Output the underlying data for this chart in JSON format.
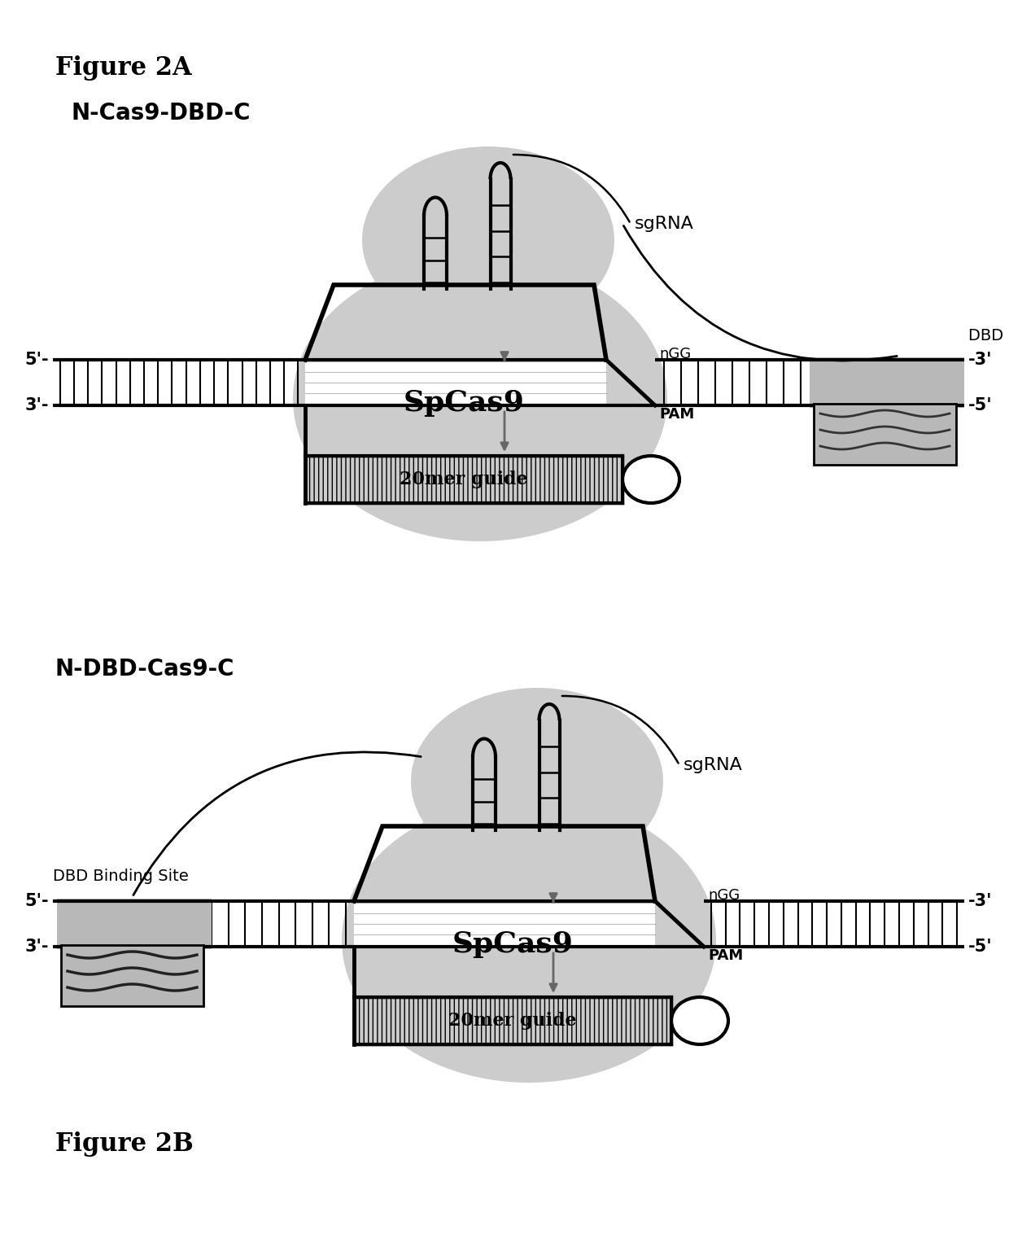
{
  "bg_color": "#ffffff",
  "fig_label": "Figure 2A",
  "panel1_label": "N-Cas9-DBD-C",
  "panel2_label": "N-DBD-Cas9-C",
  "fig2b_label": "Figure 2B",
  "cas9_label": "SpCas9",
  "sgrna_label": "sgRNA",
  "guide_label": "20mer guide",
  "pam_label": "PAM",
  "ngg_label": "nGG",
  "dbd_label": "DBD Binding Site",
  "five_prime": "5'-",
  "three_prime": "3'-",
  "right_3prime": "-3'",
  "right_5prime": "-5'",
  "gray_light": "#cccccc",
  "gray_med": "#aaaaaa",
  "gray_dark": "#888888",
  "black": "#000000",
  "white": "#ffffff",
  "arrow_color": "#666666",
  "dbd_fill": "#b8b8b8",
  "dna_hatch_color": "#555555"
}
